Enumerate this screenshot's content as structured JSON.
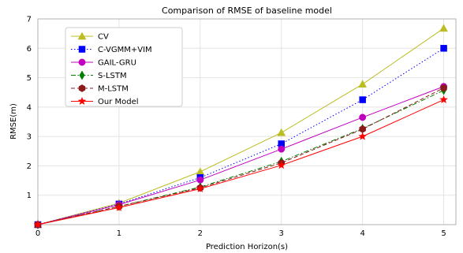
{
  "chart_data": {
    "type": "line",
    "title": "Comparison of RMSE of baseline model",
    "xlabel": "Prediction Horizon(s)",
    "ylabel": "RMSE(m)",
    "x": [
      0,
      1,
      2,
      3,
      4,
      5
    ],
    "xlim": [
      0,
      5.15
    ],
    "ylim": [
      0,
      7
    ],
    "xticks": [
      "0",
      "1",
      "2",
      "3",
      "4",
      "5"
    ],
    "yticks": [
      "1",
      "2",
      "3",
      "4",
      "5",
      "6",
      "7"
    ],
    "grid": true,
    "legend_position": "top-left",
    "series": [
      {
        "name": "CV",
        "color": "#bcbd22",
        "marker": "triangle",
        "dash": "solid",
        "values": [
          0.0,
          0.73,
          1.8,
          3.13,
          4.78,
          6.68
        ]
      },
      {
        "name": "C-VGMM+VIM",
        "color": "#0000ff",
        "marker": "square",
        "dash": "dotted",
        "values": [
          0.0,
          0.7,
          1.6,
          2.75,
          4.25,
          6.0
        ]
      },
      {
        "name": "GAIL-GRU",
        "color": "#c000c0",
        "marker": "circle",
        "dash": "solid",
        "values": [
          0.0,
          0.68,
          1.52,
          2.57,
          3.65,
          4.7
        ]
      },
      {
        "name": "S-LSTM",
        "color": "#007f00",
        "marker": "thin-diamond",
        "dash": "dashdot",
        "values": [
          0.0,
          0.62,
          1.28,
          2.15,
          3.27,
          4.57
        ]
      },
      {
        "name": "M-LSTM",
        "color": "#8b1a1a",
        "marker": "hexagon",
        "dash": "dashed",
        "values": [
          0.0,
          0.62,
          1.25,
          2.1,
          3.25,
          4.65
        ]
      },
      {
        "name": "Our Model",
        "color": "#ff0000",
        "marker": "star",
        "dash": "solid",
        "values": [
          0.0,
          0.58,
          1.22,
          2.02,
          3.0,
          4.25
        ]
      }
    ]
  }
}
